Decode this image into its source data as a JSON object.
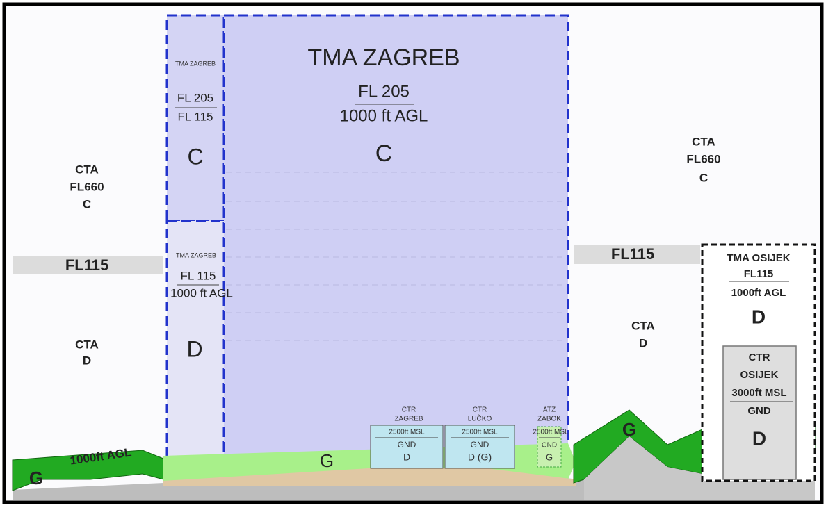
{
  "left": {
    "cta_upper": [
      "CTA",
      "FL660",
      "C"
    ],
    "fl_band": "FL115",
    "cta_lower": [
      "CTA",
      "D"
    ],
    "agl": "1000ft AGL",
    "class": "G"
  },
  "tma_zagreb_upper_small": {
    "name": "TMA ZAGREB",
    "upper": "FL 205",
    "lower": "FL 115",
    "class": "C"
  },
  "tma_zagreb_lower_small": {
    "name": "TMA ZAGREB",
    "upper": "FL 115",
    "lower": "1000 ft AGL",
    "class": "D"
  },
  "tma_zagreb": {
    "name": "TMA ZAGREB",
    "upper": "FL 205",
    "lower": "1000 ft AGL",
    "class": "C"
  },
  "ground_class": "G",
  "ctr_zagreb": {
    "name": [
      "CTR",
      "ZAGREB"
    ],
    "upper": "2500ft MSL",
    "lower": "GND",
    "class": "D"
  },
  "ctr_lucko": {
    "name": [
      "CTR",
      "LUČKO"
    ],
    "upper": "2500ft MSL",
    "lower": "GND",
    "class": "D (G)"
  },
  "atz_zabok": {
    "name": [
      "ATZ",
      "ZABOK"
    ],
    "upper": "2500ft MSL",
    "lower": "GND",
    "class": "G"
  },
  "right": {
    "cta_upper": [
      "CTA",
      "FL660",
      "C"
    ],
    "fl_band": "FL115",
    "cta_lower": [
      "CTA",
      "D"
    ],
    "class": "G"
  },
  "tma_osijek": {
    "name": "TMA OSIJEK",
    "upper": "FL115",
    "lower": "1000ft AGL",
    "class": "D"
  },
  "ctr_osijek": {
    "name": [
      "CTR",
      "OSIJEK"
    ],
    "upper": "3000ft MSL",
    "lower": "GND",
    "class": "D"
  }
}
